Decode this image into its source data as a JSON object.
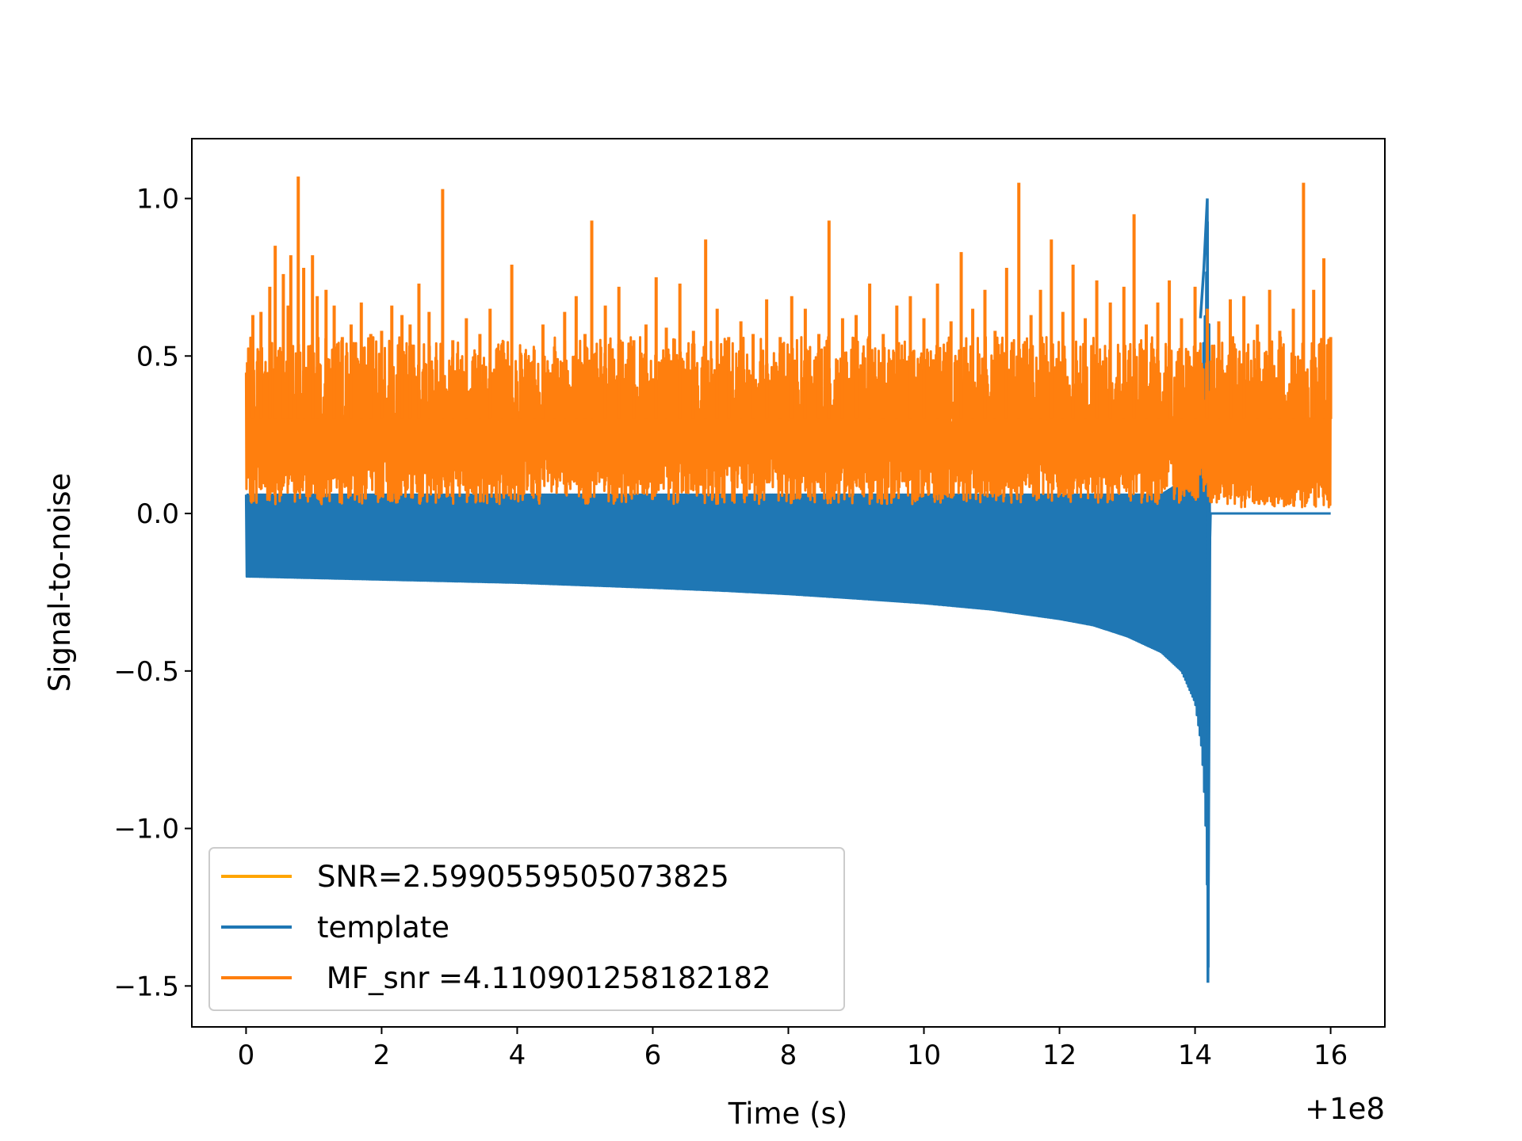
{
  "chart_data": {
    "type": "line",
    "title": "",
    "xlabel": "Time (s)",
    "ylabel": "Signal-to-noise",
    "x_offset_label": "+1e8",
    "xlim": [
      -0.8,
      16.8
    ],
    "ylim": [
      -1.63,
      1.19
    ],
    "x_ticks": [
      {
        "value": 0,
        "label": "0"
      },
      {
        "value": 2,
        "label": "2"
      },
      {
        "value": 4,
        "label": "4"
      },
      {
        "value": 6,
        "label": "6"
      },
      {
        "value": 8,
        "label": "8"
      },
      {
        "value": 10,
        "label": "10"
      },
      {
        "value": 12,
        "label": "12"
      },
      {
        "value": 14,
        "label": "14"
      },
      {
        "value": 16,
        "label": "16"
      }
    ],
    "y_ticks": [
      {
        "value": 1.0,
        "label": "1.0"
      },
      {
        "value": 0.5,
        "label": "0.5"
      },
      {
        "value": 0.0,
        "label": "0.0"
      },
      {
        "value": -0.5,
        "label": "−0.5"
      },
      {
        "value": -1.0,
        "label": "−1.0"
      },
      {
        "value": -1.5,
        "label": "−1.5"
      }
    ],
    "grid": false,
    "legend_position": "lower-left",
    "series": [
      {
        "name": "SNR=2.5990559505073825",
        "color": "#ffa500",
        "values": []
      },
      {
        "name": "template",
        "color": "#1f77b4",
        "description_of_shape": "chirp",
        "x": [
          0.0,
          1,
          2,
          3,
          4,
          5,
          6,
          7,
          8,
          9,
          10,
          11,
          12,
          12.5,
          13,
          13.5,
          13.8,
          14.0,
          14.1,
          14.15,
          14.19,
          14.2,
          14.22,
          16.0
        ],
        "upper_envelope": [
          0.06,
          0.06,
          0.06,
          0.06,
          0.06,
          0.06,
          0.06,
          0.06,
          0.06,
          0.06,
          0.06,
          0.06,
          0.06,
          0.06,
          0.06,
          0.06,
          0.1,
          0.25,
          0.45,
          0.65,
          0.95,
          1.0,
          0.0,
          0.0
        ],
        "lower_envelope": [
          -0.2,
          -0.205,
          -0.21,
          -0.215,
          -0.22,
          -0.228,
          -0.236,
          -0.245,
          -0.256,
          -0.27,
          -0.285,
          -0.305,
          -0.335,
          -0.355,
          -0.39,
          -0.44,
          -0.5,
          -0.6,
          -0.75,
          -0.95,
          -1.3,
          -1.49,
          0.0,
          0.0
        ]
      },
      {
        "name": " MF_snr =4.110901258182182",
        "color": "#ff7f0e",
        "x_range": [
          0.0,
          16.0
        ],
        "baseline": 0.08,
        "peaks": [
          {
            "x": 0.02,
            "y": 0.48
          },
          {
            "x": 0.1,
            "y": 0.63
          },
          {
            "x": 0.22,
            "y": 0.64
          },
          {
            "x": 0.35,
            "y": 0.72
          },
          {
            "x": 0.43,
            "y": 0.85
          },
          {
            "x": 0.55,
            "y": 0.76
          },
          {
            "x": 0.62,
            "y": 0.66
          },
          {
            "x": 0.66,
            "y": 0.82
          },
          {
            "x": 0.77,
            "y": 1.07
          },
          {
            "x": 0.85,
            "y": 0.78
          },
          {
            "x": 0.98,
            "y": 0.82
          },
          {
            "x": 1.05,
            "y": 0.69
          },
          {
            "x": 1.18,
            "y": 0.71
          },
          {
            "x": 1.3,
            "y": 0.66
          },
          {
            "x": 1.42,
            "y": 0.56
          },
          {
            "x": 1.55,
            "y": 0.6
          },
          {
            "x": 1.7,
            "y": 0.67
          },
          {
            "x": 1.84,
            "y": 0.57
          },
          {
            "x": 2.0,
            "y": 0.58
          },
          {
            "x": 2.15,
            "y": 0.66
          },
          {
            "x": 2.3,
            "y": 0.63
          },
          {
            "x": 2.42,
            "y": 0.6
          },
          {
            "x": 2.55,
            "y": 0.73
          },
          {
            "x": 2.7,
            "y": 0.64
          },
          {
            "x": 2.9,
            "y": 1.03
          },
          {
            "x": 3.05,
            "y": 0.55
          },
          {
            "x": 3.25,
            "y": 0.62
          },
          {
            "x": 3.45,
            "y": 0.57
          },
          {
            "x": 3.6,
            "y": 0.65
          },
          {
            "x": 3.78,
            "y": 0.54
          },
          {
            "x": 3.92,
            "y": 0.79
          },
          {
            "x": 4.05,
            "y": 0.51
          },
          {
            "x": 4.25,
            "y": 0.52
          },
          {
            "x": 4.38,
            "y": 0.6
          },
          {
            "x": 4.55,
            "y": 0.53
          },
          {
            "x": 4.7,
            "y": 0.64
          },
          {
            "x": 4.87,
            "y": 0.69
          },
          {
            "x": 5.0,
            "y": 0.57
          },
          {
            "x": 5.1,
            "y": 0.93
          },
          {
            "x": 5.3,
            "y": 0.66
          },
          {
            "x": 5.5,
            "y": 0.72
          },
          {
            "x": 5.72,
            "y": 0.55
          },
          {
            "x": 5.9,
            "y": 0.6
          },
          {
            "x": 6.05,
            "y": 0.75
          },
          {
            "x": 6.2,
            "y": 0.59
          },
          {
            "x": 6.4,
            "y": 0.73
          },
          {
            "x": 6.6,
            "y": 0.58
          },
          {
            "x": 6.78,
            "y": 0.87
          },
          {
            "x": 6.95,
            "y": 0.65
          },
          {
            "x": 7.12,
            "y": 0.56
          },
          {
            "x": 7.3,
            "y": 0.61
          },
          {
            "x": 7.48,
            "y": 0.57
          },
          {
            "x": 7.68,
            "y": 0.68
          },
          {
            "x": 7.88,
            "y": 0.56
          },
          {
            "x": 8.05,
            "y": 0.69
          },
          {
            "x": 8.25,
            "y": 0.65
          },
          {
            "x": 8.45,
            "y": 0.57
          },
          {
            "x": 8.6,
            "y": 0.93
          },
          {
            "x": 8.8,
            "y": 0.62
          },
          {
            "x": 9.0,
            "y": 0.63
          },
          {
            "x": 9.2,
            "y": 0.73
          },
          {
            "x": 9.4,
            "y": 0.57
          },
          {
            "x": 9.6,
            "y": 0.66
          },
          {
            "x": 9.8,
            "y": 0.69
          },
          {
            "x": 10.0,
            "y": 0.62
          },
          {
            "x": 10.2,
            "y": 0.73
          },
          {
            "x": 10.4,
            "y": 0.61
          },
          {
            "x": 10.55,
            "y": 0.83
          },
          {
            "x": 10.72,
            "y": 0.65
          },
          {
            "x": 10.9,
            "y": 0.71
          },
          {
            "x": 11.05,
            "y": 0.58
          },
          {
            "x": 11.22,
            "y": 0.78
          },
          {
            "x": 11.4,
            "y": 1.05
          },
          {
            "x": 11.58,
            "y": 0.63
          },
          {
            "x": 11.72,
            "y": 0.71
          },
          {
            "x": 11.88,
            "y": 0.87
          },
          {
            "x": 12.05,
            "y": 0.64
          },
          {
            "x": 12.2,
            "y": 0.79
          },
          {
            "x": 12.38,
            "y": 0.62
          },
          {
            "x": 12.55,
            "y": 0.74
          },
          {
            "x": 12.75,
            "y": 0.67
          },
          {
            "x": 12.95,
            "y": 0.72
          },
          {
            "x": 13.1,
            "y": 0.95
          },
          {
            "x": 13.28,
            "y": 0.6
          },
          {
            "x": 13.45,
            "y": 0.67
          },
          {
            "x": 13.62,
            "y": 0.74
          },
          {
            "x": 13.8,
            "y": 0.62
          },
          {
            "x": 14.0,
            "y": 0.72
          },
          {
            "x": 14.18,
            "y": 0.65
          },
          {
            "x": 14.35,
            "y": 0.61
          },
          {
            "x": 14.52,
            "y": 0.68
          },
          {
            "x": 14.72,
            "y": 0.69
          },
          {
            "x": 14.92,
            "y": 0.6
          },
          {
            "x": 15.1,
            "y": 0.71
          },
          {
            "x": 15.25,
            "y": 0.58
          },
          {
            "x": 15.45,
            "y": 0.65
          },
          {
            "x": 15.6,
            "y": 1.05
          },
          {
            "x": 15.75,
            "y": 0.71
          },
          {
            "x": 15.9,
            "y": 0.81
          },
          {
            "x": 16.0,
            "y": 0.56
          }
        ]
      }
    ]
  }
}
